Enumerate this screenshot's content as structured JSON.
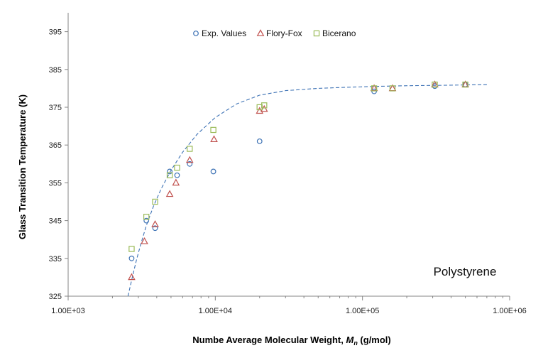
{
  "chart_data": {
    "type": "scatter",
    "title": "",
    "xlabel_prefix": "Numbe Average Molecular Weight, ",
    "xlabel_symbol": "M",
    "xlabel_sub": "n",
    "xlabel_suffix": " (g/mol)",
    "ylabel": "Glass Transition Temperature (K)",
    "xscale": "log",
    "xlim": [
      1000,
      1000000
    ],
    "ylim": [
      325,
      400
    ],
    "xticks": [
      1000,
      10000,
      100000,
      1000000
    ],
    "xtick_labels": [
      "1.00E+03",
      "1.00E+04",
      "1.00E+05",
      "1.00E+06"
    ],
    "yticks": [
      325,
      335,
      345,
      355,
      365,
      375,
      385,
      395
    ],
    "ytick_labels": [
      "325",
      "335",
      "345",
      "355",
      "365",
      "375",
      "385",
      "395"
    ],
    "grid": false,
    "legend_position": "top-center",
    "annotation": "Polystyrene",
    "series": [
      {
        "name": "Exp. Values",
        "marker": "circle",
        "color": "#3d72b5",
        "x": [
          2700,
          3400,
          3900,
          4900,
          5500,
          6700,
          9700,
          20000,
          120000,
          310000,
          500000
        ],
        "y": [
          335,
          345,
          343,
          358,
          357,
          360,
          358,
          366,
          379.2,
          380.6,
          381
        ]
      },
      {
        "name": "Flory-Fox",
        "marker": "triangle",
        "color": "#c0504d",
        "x": [
          2700,
          3300,
          3900,
          4900,
          5400,
          6700,
          9800,
          20000,
          21500,
          120000,
          160000,
          310000,
          500000
        ],
        "y": [
          330,
          339.5,
          344,
          352,
          355,
          361,
          366.5,
          374,
          374.5,
          380,
          380,
          381,
          381
        ]
      },
      {
        "name": "Bicerano",
        "marker": "square",
        "color": "#9bbb59",
        "x": [
          2700,
          3400,
          3900,
          4900,
          5500,
          6700,
          9700,
          20000,
          21500,
          120000,
          160000,
          310000,
          500000
        ],
        "y": [
          337.5,
          346,
          350,
          357,
          359,
          364,
          369,
          375,
          375.5,
          380,
          380,
          381,
          381
        ]
      }
    ],
    "fit_curve": {
      "style": "dashed",
      "color": "#3d72b5",
      "x": [
        2550,
        2700,
        2900,
        3100,
        3400,
        3800,
        4300,
        5000,
        6000,
        7500,
        10000,
        14000,
        20000,
        30000,
        50000,
        80000,
        120000,
        200000,
        350000,
        500000,
        700000
      ],
      "y": [
        325,
        329.2,
        334.3,
        338.5,
        343.7,
        348.8,
        353.5,
        358.3,
        363.1,
        367.8,
        372.3,
        375.9,
        378.2,
        379.4,
        380.0,
        380.3,
        380.5,
        380.7,
        380.8,
        380.9,
        381.0
      ]
    }
  }
}
